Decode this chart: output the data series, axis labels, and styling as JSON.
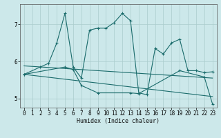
{
  "xlabel": "Humidex (Indice chaleur)",
  "bg_color": "#cce8ea",
  "grid_color": "#aacccc",
  "line_color": "#1a6b6b",
  "xlim": [
    -0.5,
    23.5
  ],
  "ylim": [
    4.75,
    7.55
  ],
  "yticks": [
    5,
    6,
    7
  ],
  "xticks": [
    0,
    1,
    2,
    3,
    4,
    5,
    6,
    7,
    8,
    9,
    10,
    11,
    12,
    13,
    14,
    15,
    16,
    17,
    18,
    19,
    20,
    21,
    22,
    23
  ],
  "series1_x": [
    0,
    2,
    3,
    4,
    5,
    6,
    7,
    8,
    9,
    10,
    11,
    12,
    13,
    14,
    15,
    16,
    17,
    18,
    19,
    20,
    21,
    22,
    23
  ],
  "series1_y": [
    5.65,
    5.85,
    5.95,
    6.5,
    7.3,
    5.85,
    5.55,
    6.85,
    6.9,
    6.9,
    7.05,
    7.3,
    7.1,
    5.15,
    5.1,
    6.35,
    6.2,
    6.5,
    6.6,
    5.75,
    5.75,
    5.7,
    5.72
  ],
  "series2_x": [
    0,
    5,
    6,
    7,
    9,
    13,
    14,
    19,
    22,
    23
  ],
  "series2_y": [
    5.65,
    5.85,
    5.78,
    5.35,
    5.15,
    5.15,
    5.13,
    5.75,
    5.58,
    4.85
  ],
  "trend1_x": [
    0,
    23
  ],
  "trend1_y": [
    5.88,
    5.55
  ],
  "trend2_x": [
    0,
    23
  ],
  "trend2_y": [
    5.65,
    5.05
  ]
}
